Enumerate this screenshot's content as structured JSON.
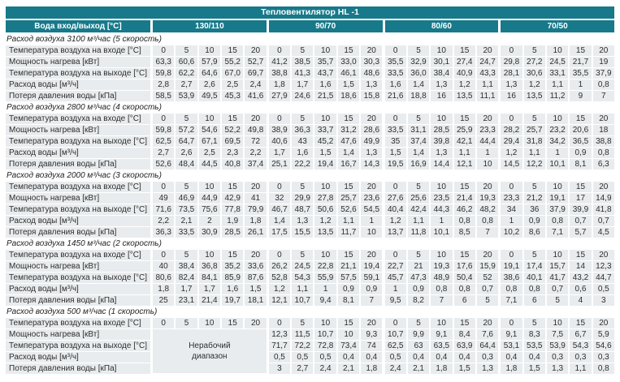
{
  "title": "Тепловентилятор HL -1",
  "colors": {
    "header_teal": "#17798a",
    "cell_gray": "#e9ecee",
    "text_dark": "#2d2d2d"
  },
  "header": {
    "water_label": "Вода вход/выход [°C]",
    "water_temps": [
      "130/110",
      "90/70",
      "80/60",
      "70/50"
    ]
  },
  "row_labels": {
    "inlet": "Температура воздуха на входе [°C]",
    "power": "Мощность нагрева [кВт]",
    "outlet": "Температура воздуха на выходе [°C]",
    "flow": "Расход воды [м³/ч]",
    "pressure": "Потеря давления воды [кПа]"
  },
  "inlet_temps": [
    "0",
    "5",
    "10",
    "15",
    "20"
  ],
  "non_working_label": "Нерабочий\nдиапазон",
  "groups": [
    {
      "title": "Расход воздуха 3100 м³/час (5 скорость)",
      "non_working": false,
      "rows": {
        "power": [
          "63,3",
          "60,6",
          "57,9",
          "55,2",
          "52,7",
          "41,2",
          "38,5",
          "35,7",
          "33,0",
          "30,3",
          "35,5",
          "32,9",
          "30,1",
          "27,4",
          "24,7",
          "29,8",
          "27,2",
          "24,5",
          "21,7",
          "19"
        ],
        "outlet": [
          "59,8",
          "62,2",
          "64,6",
          "67,0",
          "69,7",
          "38,8",
          "41,3",
          "43,7",
          "46,1",
          "48,6",
          "33,5",
          "36,0",
          "38,4",
          "40,9",
          "43,3",
          "28,1",
          "30,6",
          "33,1",
          "35,5",
          "37,9"
        ],
        "flow": [
          "2,8",
          "2,7",
          "2,6",
          "2,5",
          "2,4",
          "1,8",
          "1,7",
          "1,6",
          "1,5",
          "1,3",
          "1,6",
          "1,4",
          "1,3",
          "1,2",
          "1,1",
          "1,3",
          "1,2",
          "1,1",
          "1",
          "0,8"
        ],
        "pressure": [
          "58,5",
          "53,9",
          "49,5",
          "45,3",
          "41,6",
          "27,9",
          "24,6",
          "21,5",
          "18,6",
          "15,8",
          "21,6",
          "18,8",
          "16",
          "13,5",
          "11,1",
          "16",
          "13,5",
          "11,2",
          "9",
          "7"
        ]
      }
    },
    {
      "title": "Расход воздуха 2800 м³/час (4 скорость)",
      "non_working": false,
      "rows": {
        "power": [
          "59,8",
          "57,2",
          "54,6",
          "52,2",
          "49,8",
          "38,9",
          "36,3",
          "33,7",
          "31,2",
          "28,6",
          "33,5",
          "31,1",
          "28,5",
          "25,9",
          "23,3",
          "28,2",
          "25,7",
          "23,2",
          "20,6",
          "18"
        ],
        "outlet": [
          "62,5",
          "64,7",
          "67,1",
          "69,5",
          "72",
          "40,6",
          "43",
          "45,2",
          "47,6",
          "49,9",
          "35",
          "37,4",
          "39,8",
          "42,1",
          "44,4",
          "29,4",
          "31,8",
          "34,2",
          "36,5",
          "38,8"
        ],
        "flow": [
          "2,7",
          "2,6",
          "2,5",
          "2,3",
          "2,2",
          "1,7",
          "1,6",
          "1,5",
          "1,4",
          "1,3",
          "1,5",
          "1,4",
          "1,3",
          "1,1",
          "1",
          "1,2",
          "1,1",
          "1",
          "0,9",
          "0,8"
        ],
        "pressure": [
          "52,6",
          "48,4",
          "44,5",
          "40,8",
          "37,4",
          "25,1",
          "22,2",
          "19,4",
          "16,7",
          "14,3",
          "19,5",
          "16,9",
          "14,4",
          "12,1",
          "10",
          "14,5",
          "12,2",
          "10,1",
          "8,1",
          "6,3"
        ]
      }
    },
    {
      "title": "Расход воздуха 2000 м³/час (3 скорость)",
      "non_working": false,
      "rows": {
        "power": [
          "49",
          "46,9",
          "44,9",
          "42,9",
          "41",
          "32",
          "29,9",
          "27,8",
          "25,7",
          "23,6",
          "27,6",
          "25,6",
          "23,5",
          "21,4",
          "19,3",
          "23,3",
          "21,2",
          "19,1",
          "17",
          "14,9"
        ],
        "outlet": [
          "71,6",
          "73,5",
          "75,6",
          "77,8",
          "79,9",
          "46,7",
          "48,7",
          "50,6",
          "52,6",
          "54,5",
          "40,4",
          "42,4",
          "44,3",
          "46,2",
          "48,2",
          "34",
          "36",
          "37,9",
          "39,9",
          "41,8"
        ],
        "flow": [
          "2,2",
          "2,1",
          "2",
          "1,9",
          "1,8",
          "1,4",
          "1,3",
          "1,2",
          "1,1",
          "1",
          "1,2",
          "1,1",
          "1",
          "0,8",
          "0,8",
          "1",
          "0,9",
          "0,8",
          "0,7",
          "0,7"
        ],
        "pressure": [
          "36,3",
          "33,5",
          "30,9",
          "28,5",
          "26,1",
          "17,5",
          "15,5",
          "13,5",
          "11,7",
          "10",
          "13,7",
          "11,8",
          "10,1",
          "8,5",
          "7",
          "10,2",
          "8,6",
          "7,1",
          "5,7",
          "4,5"
        ]
      }
    },
    {
      "title": "Расход воздуха 1450 м³/час (2 скорость)",
      "non_working": false,
      "rows": {
        "power": [
          "40",
          "38,4",
          "36,8",
          "35,2",
          "33,6",
          "26,2",
          "24,5",
          "22,8",
          "21,1",
          "19,4",
          "22,7",
          "21",
          "19,3",
          "17,6",
          "15,9",
          "19,1",
          "17,4",
          "15,7",
          "14",
          "12,3"
        ],
        "outlet": [
          "80,6",
          "82,4",
          "84,1",
          "85,9",
          "87,6",
          "52,8",
          "54,3",
          "55,9",
          "57,5",
          "59,1",
          "45,7",
          "47,3",
          "48,9",
          "50,4",
          "52",
          "38,6",
          "40,1",
          "41,7",
          "43,2",
          "44,7"
        ],
        "flow": [
          "1,8",
          "1,7",
          "1,7",
          "1,6",
          "1,5",
          "1,2",
          "1,1",
          "1",
          "0,9",
          "0,9",
          "1",
          "0,9",
          "0,8",
          "0,8",
          "0,7",
          "0,8",
          "0,8",
          "0,7",
          "0,6",
          "0,5"
        ],
        "pressure": [
          "25",
          "23,1",
          "21,4",
          "19,7",
          "18,1",
          "12,1",
          "10,7",
          "9,4",
          "8,1",
          "7",
          "9,5",
          "8,2",
          "7",
          "6",
          "5",
          "7,1",
          "6",
          "5",
          "4",
          "3"
        ]
      }
    },
    {
      "title": "Расход воздуха 500 м³/час (1 скорость)",
      "non_working": true,
      "rows": {
        "power": [
          "",
          "",
          "",
          "",
          "",
          "12,3",
          "11,5",
          "10,7",
          "10",
          "9,3",
          "10,7",
          "9,9",
          "9,1",
          "8,4",
          "7,6",
          "9,1",
          "8,3",
          "7,5",
          "6,7",
          "5,9"
        ],
        "outlet": [
          "",
          "",
          "",
          "",
          "",
          "71,7",
          "72,2",
          "72,8",
          "73,4",
          "74",
          "62,5",
          "63",
          "63,5",
          "63,9",
          "64,4",
          "53,1",
          "53,5",
          "53,9",
          "54,3",
          "54,6"
        ],
        "flow": [
          "",
          "",
          "",
          "",
          "",
          "0,5",
          "0,5",
          "0,5",
          "0,4",
          "0,4",
          "0,5",
          "0,4",
          "0,4",
          "0,4",
          "0,3",
          "0,4",
          "0,4",
          "0,3",
          "0,3",
          "0,3"
        ],
        "pressure": [
          "",
          "",
          "",
          "",
          "",
          "3",
          "2,7",
          "2,4",
          "2,1",
          "1,8",
          "2,4",
          "2,1",
          "1,8",
          "1,5",
          "1,3",
          "1,8",
          "1,5",
          "1,3",
          "1,1",
          "0,8"
        ]
      }
    }
  ]
}
